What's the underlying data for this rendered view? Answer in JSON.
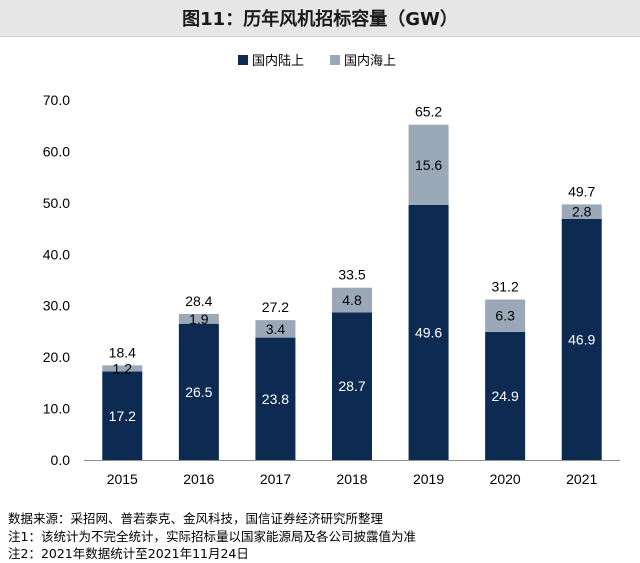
{
  "title": "图11：历年风机招标容量（GW）",
  "chart_data": {
    "type": "bar",
    "stacked": true,
    "categories": [
      "2015",
      "2016",
      "2017",
      "2018",
      "2019",
      "2020",
      "2021"
    ],
    "series": [
      {
        "name": "国内陆上",
        "color": "#0c2a52",
        "values": [
          17.2,
          26.5,
          23.8,
          28.7,
          49.6,
          24.9,
          46.9
        ],
        "labels": [
          "17.2",
          "26.5",
          "23.8",
          "28.7",
          "49.6",
          "24.9",
          "46.9"
        ]
      },
      {
        "name": "国内海上",
        "color": "#9ba8b7",
        "values": [
          1.2,
          1.9,
          3.4,
          4.8,
          15.6,
          6.3,
          2.8
        ],
        "labels": [
          "1.2",
          "1.9",
          "3.4",
          "4.8",
          "15.6",
          "6.3",
          "2.8"
        ]
      }
    ],
    "totals": [
      18.4,
      28.4,
      27.2,
      33.5,
      65.2,
      31.2,
      49.7
    ],
    "total_labels": [
      "18.4",
      "28.4",
      "27.2",
      "33.5",
      "65.2",
      "31.2",
      "49.7"
    ],
    "ylim": [
      0,
      70
    ],
    "yticks": [
      "0.0",
      "10.0",
      "20.0",
      "30.0",
      "40.0",
      "50.0",
      "60.0",
      "70.0"
    ],
    "legend_position": "top-center",
    "grid": false
  },
  "notes": [
    "数据来源：采招网、普若泰克、金风科技，国信证券经济研究所整理",
    "注1：该统计为不完全统计，实际招标量以国家能源局及各公司披露值为准",
    "注2：2021年数据统计至2021年11月24日"
  ]
}
